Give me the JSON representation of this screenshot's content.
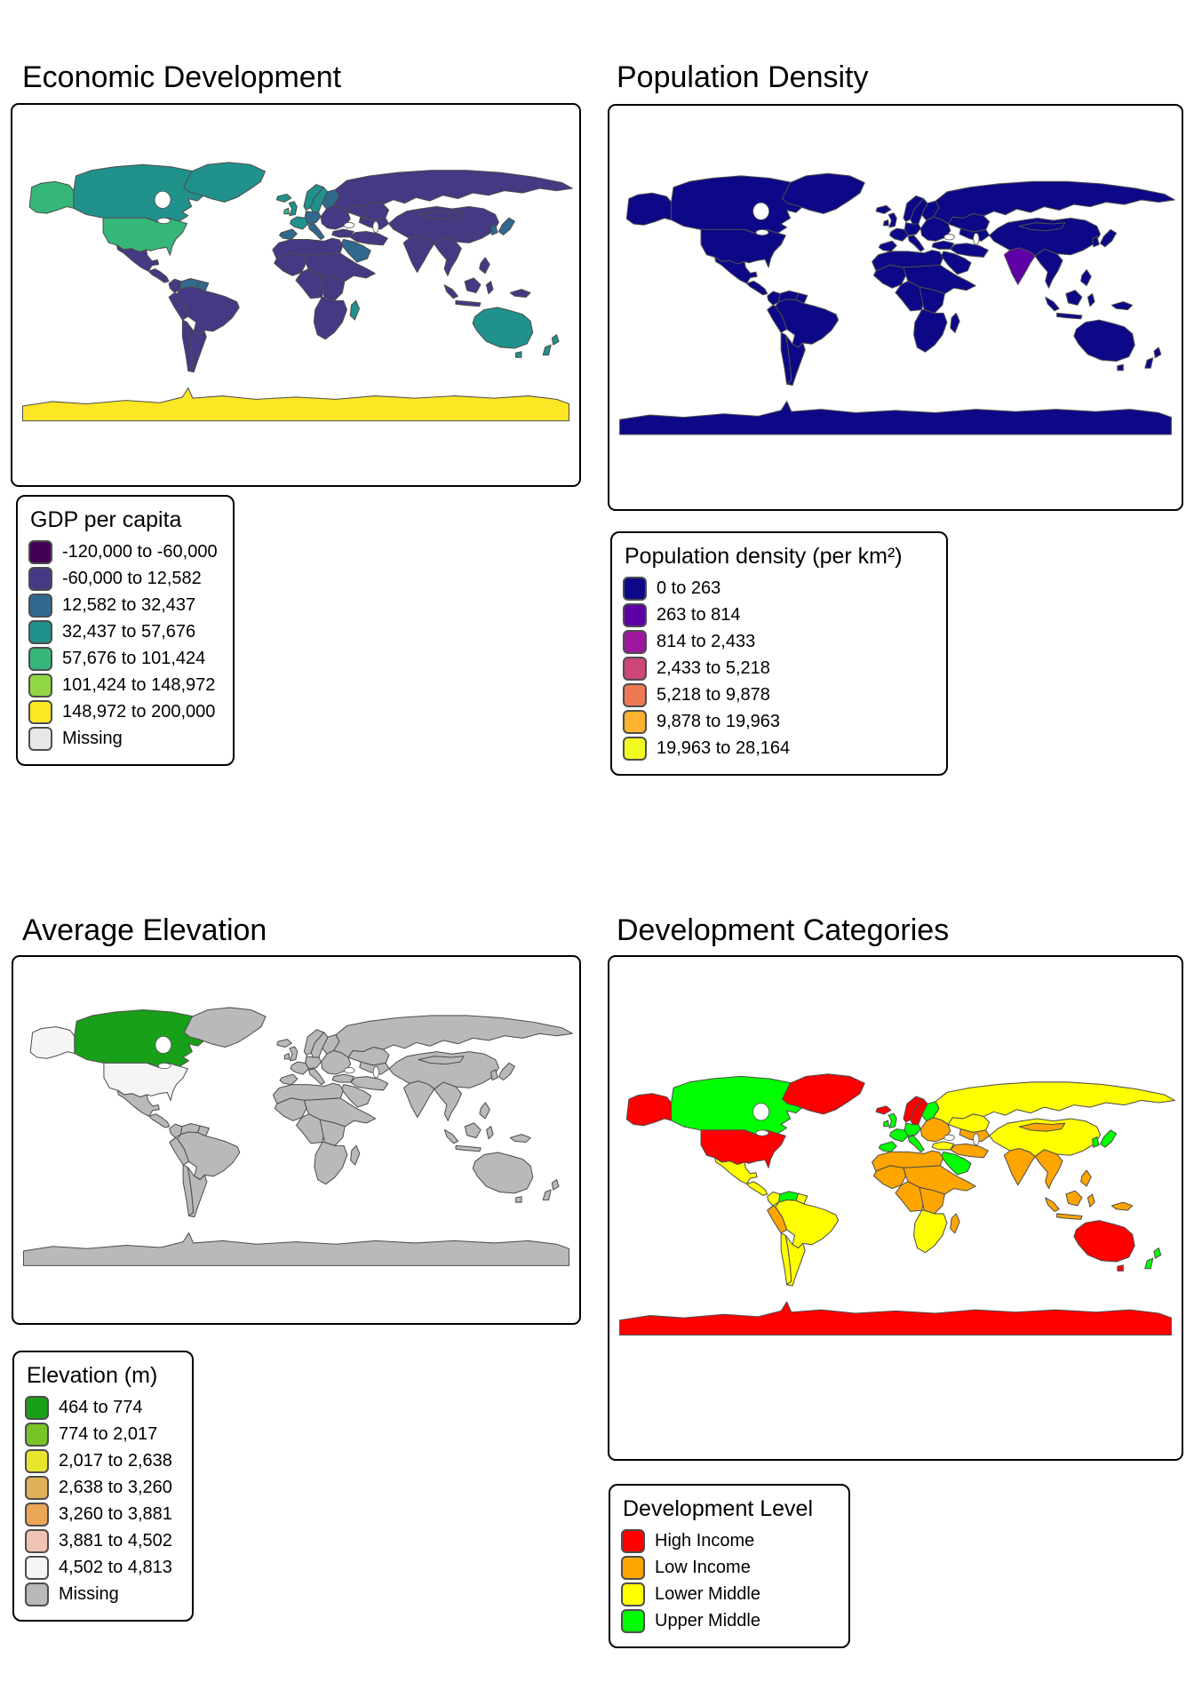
{
  "style": {
    "country_border": "#4D4D4D",
    "box_border": "#000000",
    "background": "#FFFFFF"
  },
  "panels": [
    {
      "id": "economic",
      "title": "Economic Development",
      "legend": {
        "title": "GDP per capita",
        "items": [
          {
            "label": "-120,000 to -60,000",
            "color": "#440154"
          },
          {
            "label": "-60,000 to 12,582",
            "color": "#443983"
          },
          {
            "label": "12,582 to 32,437",
            "color": "#31688E"
          },
          {
            "label": "32,437 to 57,676",
            "color": "#21918C"
          },
          {
            "label": "57,676 to 101,424",
            "color": "#35B779"
          },
          {
            "label": "101,424 to 148,972",
            "color": "#90D743"
          },
          {
            "label": "148,972 to 200,000",
            "color": "#FDE725"
          },
          {
            "label": "Missing",
            "color": "#E8E8E8"
          }
        ]
      },
      "fills": {
        "default": "#443983",
        "alaska": "#35B779",
        "usa": "#35B779",
        "canada": "#21918C",
        "greenland": "#21918C",
        "venezuela": "#31688E",
        "guyanas": "#31688E",
        "uk": "#21918C",
        "ireland": "#35B779",
        "iceland": "#21918C",
        "norway": "#21918C",
        "sweden": "#21918C",
        "finland": "#31688E",
        "france": "#21918C",
        "iberia": "#31688E",
        "germany": "#31688E",
        "italy": "#31688E",
        "arabia": "#31688E",
        "madagascar": "#21918C",
        "japan": "#31688E",
        "korea": "#31688E",
        "australia": "#21918C",
        "tasmania": "#21918C",
        "new-zealand": "#21918C",
        "antarctica": "#FDE725"
      }
    },
    {
      "id": "population",
      "title": "Population Density",
      "legend": {
        "title": "Population density (per km²)",
        "items": [
          {
            "label": "0 to 263",
            "color": "#0D0887"
          },
          {
            "label": "263 to 814",
            "color": "#5D01A6"
          },
          {
            "label": "814 to 2,433",
            "color": "#9C179E"
          },
          {
            "label": "2,433 to 5,218",
            "color": "#CC4778"
          },
          {
            "label": "5,218 to 9,878",
            "color": "#ED7953"
          },
          {
            "label": "9,878 to 19,963",
            "color": "#FDB32F"
          },
          {
            "label": "19,963 to 28,164",
            "color": "#F0F921"
          }
        ]
      },
      "fills": {
        "default": "#0D0887",
        "india": "#5D01A6"
      }
    },
    {
      "id": "elevation",
      "title": "Average Elevation",
      "legend": {
        "title": "Elevation (m)",
        "items": [
          {
            "label": "464 to 774",
            "color": "#18A018"
          },
          {
            "label": "774 to 2,017",
            "color": "#76C426"
          },
          {
            "label": "2,017 to 2,638",
            "color": "#E8E52F"
          },
          {
            "label": "2,638 to 3,260",
            "color": "#DFB156"
          },
          {
            "label": "3,260 to 3,881",
            "color": "#EBA658"
          },
          {
            "label": "3,881 to 4,502",
            "color": "#EFC4B4"
          },
          {
            "label": "4,502 to 4,813",
            "color": "#F5F5F5"
          },
          {
            "label": "Missing",
            "color": "#B9B9B9"
          }
        ]
      },
      "fills": {
        "default": "#B9B9B9",
        "canada": "#18A018",
        "alaska": "#F5F5F5",
        "usa": "#F5F5F5"
      }
    },
    {
      "id": "development",
      "title": "Development Categories",
      "legend": {
        "title": "Development Level",
        "items": [
          {
            "label": "High Income",
            "color": "#FF0000"
          },
          {
            "label": "Low Income",
            "color": "#FFA500"
          },
          {
            "label": "Lower Middle",
            "color": "#FFFF00"
          },
          {
            "label": "Upper Middle",
            "color": "#00FF00"
          }
        ]
      },
      "fills": {
        "default": "#FFA500",
        "alaska": "#FF0000",
        "usa": "#FF0000",
        "greenland": "#FF0000",
        "canada": "#00FF00",
        "mexico": "#FFFF00",
        "central-america": "#FFFF00",
        "colombia": "#FFFF00",
        "venezuela": "#00FF00",
        "guyanas": "#FFFF00",
        "brazil": "#FFFF00",
        "chile": "#FFFF00",
        "argentina": "#FFFF00",
        "peru": "#FFA500",
        "uk": "#00FF00",
        "ireland": "#00FF00",
        "iceland": "#FF0000",
        "norway": "#FF0000",
        "sweden": "#FF0000",
        "finland": "#00FF00",
        "france": "#00FF00",
        "iberia": "#00FF00",
        "germany": "#00FF00",
        "italy": "#00FF00",
        "east-europe": "#FFA500",
        "turkey": "#FFFF00",
        "russia": "#FFFF00",
        "kazakhstan": "#FFFF00",
        "china": "#FFFF00",
        "arabia": "#00FF00",
        "southern-africa": "#FFFF00",
        "japan": "#00FF00",
        "korea": "#00FF00",
        "australia": "#FF0000",
        "tasmania": "#FF0000",
        "new-zealand": "#00FF00",
        "antarctica": "#FF0000"
      }
    }
  ]
}
